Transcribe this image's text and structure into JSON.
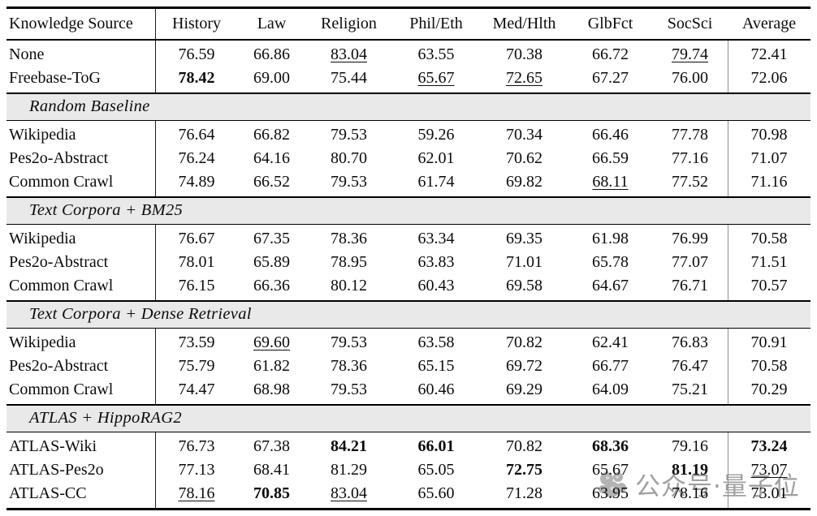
{
  "table": {
    "columns": [
      "Knowledge Source",
      "History",
      "Law",
      "Religion",
      "Phil/Eth",
      "Med/Hlth",
      "GlbFct",
      "SocSci",
      "Average"
    ],
    "sections": [
      {
        "title": "",
        "rows": [
          {
            "label": "None",
            "cells": [
              "76.59",
              "66.86",
              "83.04",
              "63.55",
              "70.38",
              "66.72",
              "79.74",
              "72.41"
            ],
            "styles": [
              "",
              "",
              "u",
              "",
              "",
              "",
              "u",
              ""
            ]
          },
          {
            "label": "Freebase-ToG",
            "cells": [
              "78.42",
              "69.00",
              "75.44",
              "65.67",
              "72.65",
              "67.27",
              "76.00",
              "72.06"
            ],
            "styles": [
              "b",
              "",
              "",
              "u",
              "u",
              "",
              "",
              ""
            ]
          }
        ]
      },
      {
        "title": "Random Baseline",
        "rows": [
          {
            "label": "Wikipedia",
            "cells": [
              "76.64",
              "66.82",
              "79.53",
              "59.26",
              "70.34",
              "66.46",
              "77.78",
              "70.98"
            ],
            "styles": [
              "",
              "",
              "",
              "",
              "",
              "",
              "",
              ""
            ]
          },
          {
            "label": "Pes2o-Abstract",
            "cells": [
              "76.24",
              "64.16",
              "80.70",
              "62.01",
              "70.62",
              "66.59",
              "77.16",
              "71.07"
            ],
            "styles": [
              "",
              "",
              "",
              "",
              "",
              "",
              "",
              ""
            ]
          },
          {
            "label": "Common Crawl",
            "cells": [
              "74.89",
              "66.52",
              "79.53",
              "61.74",
              "69.82",
              "68.11",
              "77.52",
              "71.16"
            ],
            "styles": [
              "",
              "",
              "",
              "",
              "",
              "u",
              "",
              ""
            ]
          }
        ]
      },
      {
        "title": "Text Corpora + BM25",
        "rows": [
          {
            "label": "Wikipedia",
            "cells": [
              "76.67",
              "67.35",
              "78.36",
              "63.34",
              "69.35",
              "61.98",
              "76.99",
              "70.58"
            ],
            "styles": [
              "",
              "",
              "",
              "",
              "",
              "",
              "",
              ""
            ]
          },
          {
            "label": "Pes2o-Abstract",
            "cells": [
              "78.01",
              "65.89",
              "78.95",
              "63.83",
              "71.01",
              "65.78",
              "77.07",
              "71.51"
            ],
            "styles": [
              "",
              "",
              "",
              "",
              "",
              "",
              "",
              ""
            ]
          },
          {
            "label": "Common Crawl",
            "cells": [
              "76.15",
              "66.36",
              "80.12",
              "60.43",
              "69.58",
              "64.67",
              "76.71",
              "70.57"
            ],
            "styles": [
              "",
              "",
              "",
              "",
              "",
              "",
              "",
              ""
            ]
          }
        ]
      },
      {
        "title": "Text Corpora + Dense Retrieval",
        "rows": [
          {
            "label": "Wikipedia",
            "cells": [
              "73.59",
              "69.60",
              "79.53",
              "63.58",
              "70.82",
              "62.41",
              "76.83",
              "70.91"
            ],
            "styles": [
              "",
              "u",
              "",
              "",
              "",
              "",
              "",
              ""
            ]
          },
          {
            "label": "Pes2o-Abstract",
            "cells": [
              "75.79",
              "61.82",
              "78.36",
              "65.15",
              "69.72",
              "66.77",
              "76.47",
              "70.58"
            ],
            "styles": [
              "",
              "",
              "",
              "",
              "",
              "",
              "",
              ""
            ]
          },
          {
            "label": "Common Crawl",
            "cells": [
              "74.47",
              "68.98",
              "79.53",
              "60.46",
              "69.29",
              "64.09",
              "75.21",
              "70.29"
            ],
            "styles": [
              "",
              "",
              "",
              "",
              "",
              "",
              "",
              ""
            ]
          }
        ]
      },
      {
        "title": "ATLAS + HippoRAG2",
        "rows": [
          {
            "label": "ATLAS-Wiki",
            "cells": [
              "76.73",
              "67.38",
              "84.21",
              "66.01",
              "70.82",
              "68.36",
              "79.16",
              "73.24"
            ],
            "styles": [
              "",
              "",
              "b",
              "b",
              "",
              "b",
              "",
              "b"
            ]
          },
          {
            "label": "ATLAS-Pes2o",
            "cells": [
              "77.13",
              "68.41",
              "81.29",
              "65.05",
              "72.75",
              "65.67",
              "81.19",
              "73.07"
            ],
            "styles": [
              "",
              "",
              "",
              "",
              "b",
              "",
              "b",
              "u"
            ]
          },
          {
            "label": "ATLAS-CC",
            "cells": [
              "78.16",
              "70.85",
              "83.04",
              "65.60",
              "71.28",
              "63.95",
              "78.16",
              "73.01"
            ],
            "styles": [
              "u",
              "b",
              "u",
              "",
              "",
              "",
              "",
              ""
            ]
          }
        ]
      }
    ]
  },
  "watermark": {
    "text": "公众号·量子位",
    "logo": "qbitai-logo"
  },
  "colors": {
    "band_background": "#e9e9e9",
    "rule": "#000000",
    "right_separator": "#909090",
    "watermark_gray": "#a0a0a0"
  }
}
